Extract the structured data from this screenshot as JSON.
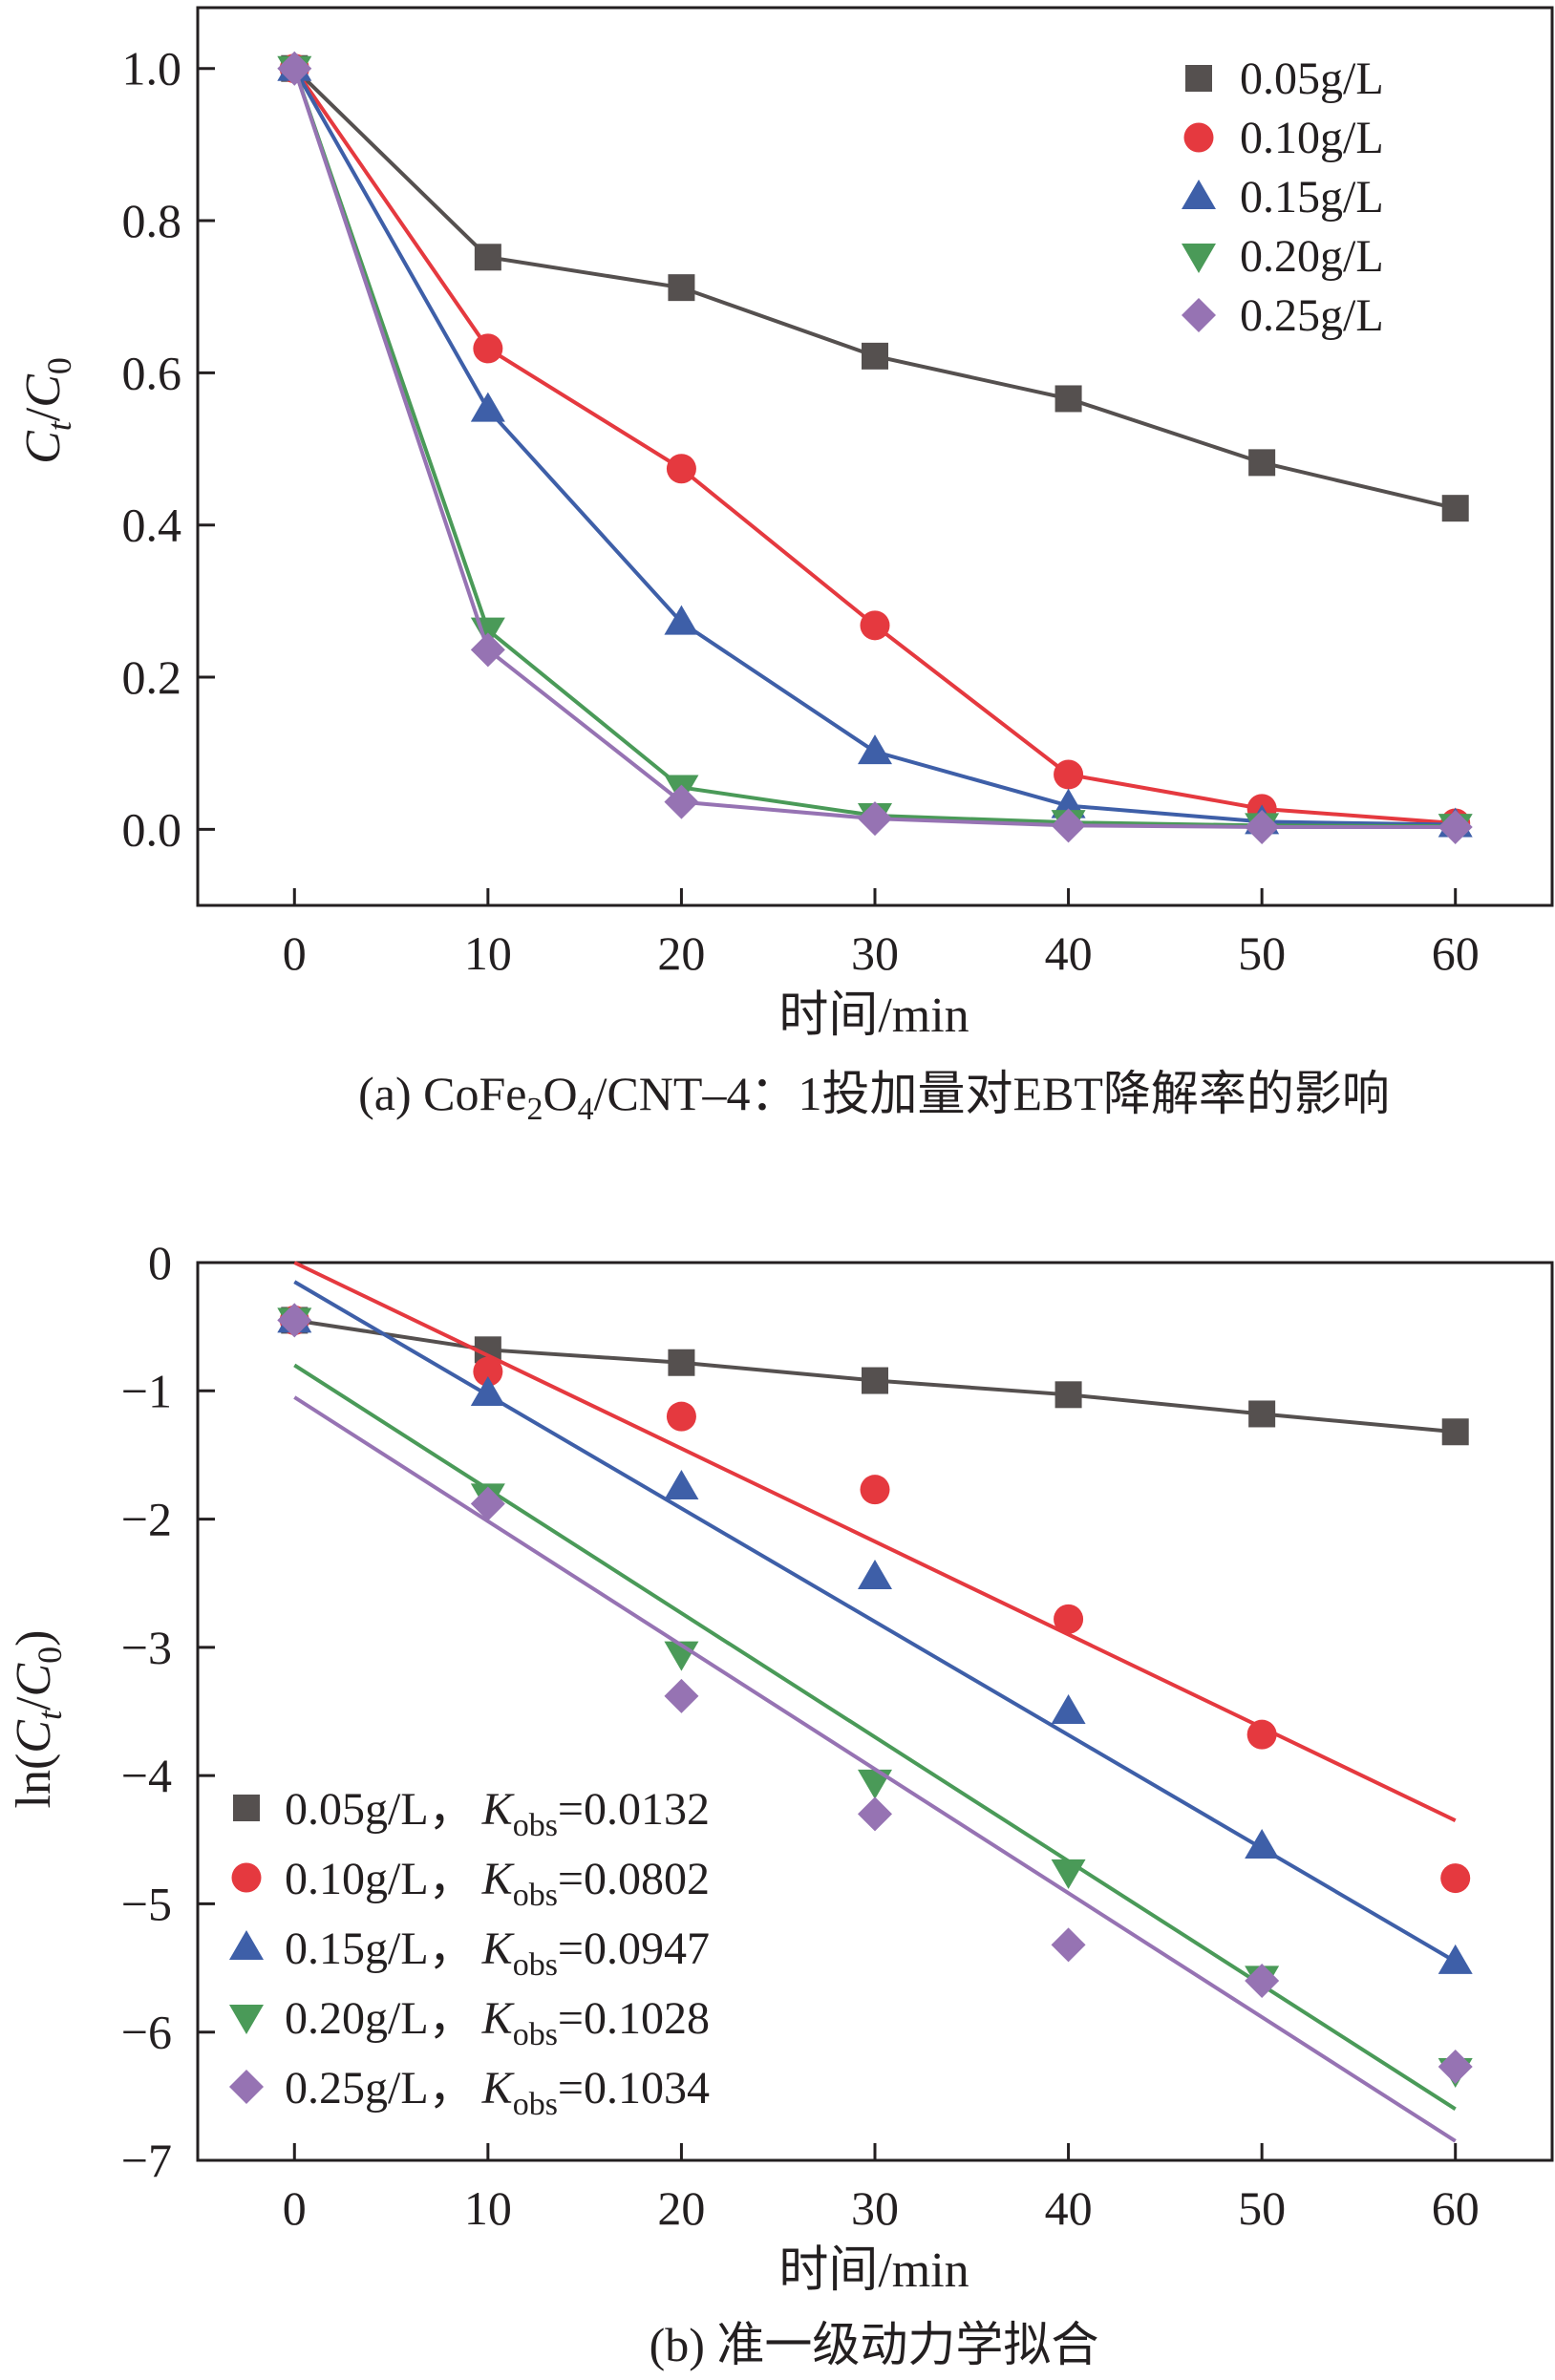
{
  "chart_data": [
    {
      "type": "line",
      "panel": "a",
      "caption": {
        "prefix": "(a) CoFe",
        "sub1": "2",
        "mid1": "O",
        "sub2": "4",
        "rest": "/CNT–4：1投加量对EBT降解率的影响"
      },
      "xlabel": "时间/min",
      "ylabel": {
        "c": "C",
        "t": "t",
        "slash": "/",
        "c0": "C",
        "zero": "0"
      },
      "xlim": [
        -5,
        65
      ],
      "ylim": [
        -0.1,
        1.08
      ],
      "xticks": [
        0,
        10,
        20,
        30,
        40,
        50,
        60
      ],
      "xtick_labels": [
        "0",
        "10",
        "20",
        "30",
        "40",
        "50",
        "60"
      ],
      "yticks": [
        0.0,
        0.2,
        0.4,
        0.6,
        0.8,
        1.0
      ],
      "ytick_labels": [
        "0.0",
        "0.2",
        "0.4",
        "0.6",
        "0.8",
        "1.0"
      ],
      "legend_position": "top-right",
      "x": [
        0,
        10,
        20,
        30,
        40,
        50,
        60
      ],
      "series": [
        {
          "name": "0.05g/L",
          "color": "#55504f",
          "marker": "square",
          "values": [
            1.0,
            0.752,
            0.712,
            0.622,
            0.566,
            0.482,
            0.422
          ]
        },
        {
          "name": "0.10g/L",
          "color": "#e5393f",
          "marker": "circle",
          "values": [
            1.0,
            0.632,
            0.474,
            0.268,
            0.072,
            0.027,
            0.008
          ]
        },
        {
          "name": "0.15g/L",
          "color": "#3e5fa8",
          "marker": "triangle-up",
          "values": [
            1.0,
            0.552,
            0.272,
            0.102,
            0.031,
            0.01,
            0.006
          ]
        },
        {
          "name": "0.20g/L",
          "color": "#4a9a58",
          "marker": "triangle-down",
          "values": [
            1.0,
            0.262,
            0.055,
            0.018,
            0.009,
            0.005,
            0.004
          ]
        },
        {
          "name": "0.25g/L",
          "color": "#9673b3",
          "marker": "diamond",
          "values": [
            1.0,
            0.236,
            0.036,
            0.014,
            0.005,
            0.003,
            0.003
          ]
        }
      ]
    },
    {
      "type": "scatter",
      "panel": "b",
      "caption": {
        "text": "(b) 准一级动力学拟合"
      },
      "xlabel": "时间/min",
      "ylabel": {
        "prefix": "ln(",
        "c": "C",
        "t": "t",
        "slash": "/",
        "c0": "C",
        "zero": "0",
        "suffix": ")"
      },
      "xlim": [
        -5,
        65
      ],
      "ylim": [
        -7,
        0
      ],
      "xticks": [
        0,
        10,
        20,
        30,
        40,
        50,
        60
      ],
      "xtick_labels": [
        "0",
        "10",
        "20",
        "30",
        "40",
        "50",
        "60"
      ],
      "yticks": [
        0,
        -1,
        -2,
        -3,
        -4,
        -5,
        -6,
        -7
      ],
      "ytick_labels": [
        "0",
        "−1",
        "−2",
        "−3",
        "−4",
        "−5",
        "−6",
        "−7"
      ],
      "legend_position": "bottom-left",
      "x": [
        0,
        10,
        20,
        30,
        40,
        50,
        60
      ],
      "series": [
        {
          "name": "0.05g/L，",
          "k_sym": "K",
          "k_sub": "obs",
          "k_val": "=0.0132",
          "color": "#55504f",
          "marker": "square",
          "values": [
            -0.45,
            -0.68,
            -0.78,
            -0.92,
            -1.03,
            -1.18,
            -1.32
          ],
          "fit": [
            -0.5,
            -1.3
          ],
          "connect": true
        },
        {
          "name": "0.10g/L，",
          "k_sym": "K",
          "k_sub": "obs",
          "k_val": "=0.0802",
          "color": "#e5393f",
          "marker": "circle",
          "values": [
            -0.45,
            -0.85,
            -1.2,
            -1.77,
            -2.78,
            -3.68,
            -4.8
          ],
          "fit": [
            0.0,
            -4.35
          ],
          "connect": false
        },
        {
          "name": "0.15g/L，",
          "k_sym": "K",
          "k_sub": "obs",
          "k_val": "=0.0947",
          "color": "#3e5fa8",
          "marker": "triangle-up",
          "values": [
            -0.45,
            -1.02,
            -1.75,
            -2.45,
            -3.5,
            -4.55,
            -5.45
          ],
          "fit": [
            -0.15,
            -5.45
          ],
          "connect": false
        },
        {
          "name": "0.20g/L，",
          "k_sym": "K",
          "k_sub": "obs",
          "k_val": "=0.1028",
          "color": "#4a9a58",
          "marker": "triangle-down",
          "values": [
            -0.45,
            -1.82,
            -3.05,
            -4.05,
            -4.75,
            -5.58,
            -6.3
          ],
          "fit": [
            -0.8,
            -6.6
          ],
          "connect": false
        },
        {
          "name": "0.25g/L，",
          "k_sym": "K",
          "k_sub": "obs",
          "k_val": "=0.1034",
          "color": "#9673b3",
          "marker": "diamond",
          "values": [
            -0.45,
            -1.88,
            -3.38,
            -4.3,
            -5.32,
            -5.6,
            -6.27
          ],
          "fit": [
            -1.05,
            -6.85
          ],
          "connect": false
        }
      ]
    }
  ]
}
